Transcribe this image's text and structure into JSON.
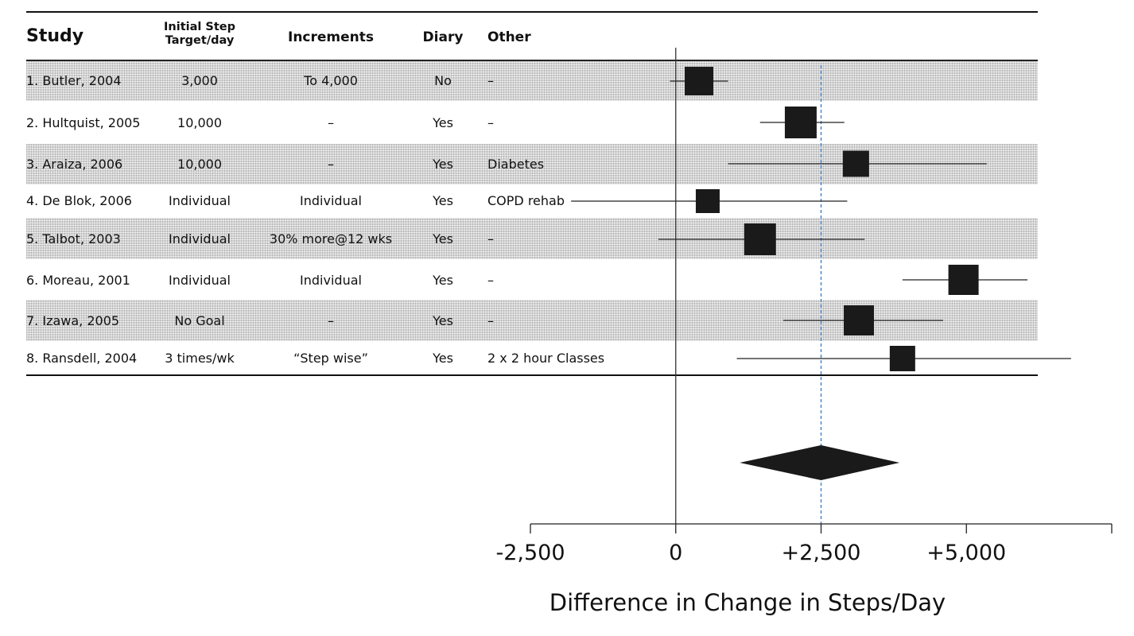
{
  "table": {
    "headers": {
      "study": "Study",
      "target_line1": "Initial Step",
      "target_line2": "Target/day",
      "increments": "Increments",
      "diary": "Diary",
      "other": "Other"
    },
    "rows": [
      {
        "study": "1. Butler, 2004",
        "target": "3,000",
        "increments": "To 4,000",
        "diary": "No",
        "other": "–"
      },
      {
        "study": "2. Hultquist, 2005",
        "target": "10,000",
        "increments": "–",
        "diary": "Yes",
        "other": "–"
      },
      {
        "study": "3. Araiza, 2006",
        "target": "10,000",
        "increments": "–",
        "diary": "Yes",
        "other": "Diabetes"
      },
      {
        "study": "4. De Blok, 2006",
        "target": "Individual",
        "increments": "Individual",
        "diary": "Yes",
        "other": "COPD rehab"
      },
      {
        "study": "5. Talbot, 2003",
        "target": "Individual",
        "increments": "30% more@12 wks",
        "diary": "Yes",
        "other": "–"
      },
      {
        "study": "6. Moreau, 2001",
        "target": "Individual",
        "increments": "Individual",
        "diary": "Yes",
        "other": "–"
      },
      {
        "study": "7. Izawa, 2005",
        "target": "No Goal",
        "increments": "–",
        "diary": "Yes",
        "other": "–"
      },
      {
        "study": "8. Ransdell, 2004",
        "target": "3 times/wk",
        "increments": "“Step wise”",
        "diary": "Yes",
        "other": "2 x 2 hour Classes"
      }
    ]
  },
  "chart_data": {
    "type": "forest",
    "xlabel": "Difference in Change in Steps/Day",
    "xlim": [
      -2500,
      7500
    ],
    "tick_values": [
      -2500,
      0,
      2500,
      5000,
      7500
    ],
    "tick_labels": [
      "-2,500",
      "0",
      "+2,500",
      "+5,000",
      ""
    ],
    "reference_line": 0,
    "summary_line": 2500,
    "summary_line_color": "#3a78c2",
    "studies": [
      {
        "label": "1. Butler, 2004",
        "estimate": 400,
        "ci_low": -100,
        "ci_high": 900
      },
      {
        "label": "2. Hultquist, 2005",
        "estimate": 2150,
        "ci_low": 1450,
        "ci_high": 2900
      },
      {
        "label": "3. Araiza, 2006",
        "estimate": 3100,
        "ci_low": 900,
        "ci_high": 5350
      },
      {
        "label": "4. De Blok, 2006",
        "estimate": 550,
        "ci_low": -1800,
        "ci_high": 2950
      },
      {
        "label": "5. Talbot, 2003",
        "estimate": 1450,
        "ci_low": -300,
        "ci_high": 3250
      },
      {
        "label": "6. Moreau, 2001",
        "estimate": 4950,
        "ci_low": 3900,
        "ci_high": 6050
      },
      {
        "label": "7. Izawa, 2005",
        "estimate": 3150,
        "ci_low": 1850,
        "ci_high": 4600
      },
      {
        "label": "8. Ransdell, 2004",
        "estimate": 3900,
        "ci_low": 1050,
        "ci_high": 6800
      }
    ],
    "summary": {
      "estimate": 2500,
      "ci_low": 1100,
      "ci_high": 3850
    },
    "marker_color": "#1a1a1a"
  }
}
